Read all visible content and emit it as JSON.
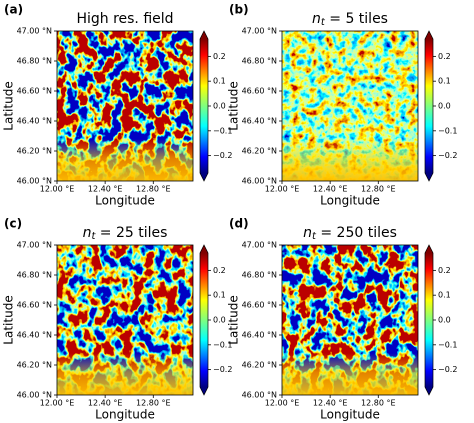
{
  "chart_data": [
    {
      "type": "heatmap",
      "panel_label": "(a)",
      "title": "High res. field",
      "xlabel": "Longitude",
      "ylabel": "Latitude",
      "contrast": 3.2,
      "xlim": [
        12.0,
        13.13
      ],
      "xticks": [
        {
          "value": 12.0,
          "label": "12.00 °E"
        },
        {
          "value": 12.4,
          "label": "12.40 °E"
        },
        {
          "value": 12.8,
          "label": "12.80 °E"
        }
      ],
      "ylim": [
        46.0,
        47.0
      ],
      "yticks": [
        {
          "value": 46.0,
          "label": "46.00 °N"
        },
        {
          "value": 46.2,
          "label": "46.20 °N"
        },
        {
          "value": 46.4,
          "label": "46.40 °N"
        },
        {
          "value": 46.6,
          "label": "46.60 °N"
        },
        {
          "value": 46.8,
          "label": "46.80 °N"
        },
        {
          "value": 47.0,
          "label": "47.00 °N"
        }
      ],
      "colorbar": {
        "lim": [
          -0.27,
          0.27
        ],
        "ticks": [
          {
            "value": -0.2,
            "label": "−0.2"
          },
          {
            "value": -0.1,
            "label": "−0.1"
          },
          {
            "value": 0,
            "label": "0.0"
          },
          0.1,
          0.2
        ]
      }
    },
    {
      "type": "heatmap",
      "panel_label": "(b)",
      "title": [
        "n",
        "t",
        " = 5 tiles"
      ],
      "xlabel": "Longitude",
      "ylabel": "Latitude",
      "contrast": 1.0,
      "xlim": [
        12.0,
        13.13
      ],
      "xticks": [
        {
          "value": 12.0,
          "label": "12.00 °E"
        },
        {
          "value": 12.4,
          "label": "12.40 °E"
        },
        {
          "value": 12.8,
          "label": "12.80 °E"
        }
      ],
      "ylim": [
        46.0,
        47.0
      ],
      "yticks": [
        {
          "value": 46.0,
          "label": "46.00 °N"
        },
        {
          "value": 46.2,
          "label": "46.20 °N"
        },
        {
          "value": 46.4,
          "label": "46.40 °N"
        },
        {
          "value": 46.6,
          "label": "46.60 °N"
        },
        {
          "value": 46.8,
          "label": "46.80 °N"
        },
        {
          "value": 47.0,
          "label": "47.00 °N"
        }
      ],
      "colorbar": {
        "lim": [
          -0.27,
          0.27
        ],
        "ticks": [
          {
            "value": -0.2,
            "label": "−0.2"
          },
          {
            "value": -0.1,
            "label": "−0.1"
          },
          {
            "value": 0,
            "label": "0.0"
          },
          0.1,
          0.2
        ]
      }
    },
    {
      "type": "heatmap",
      "panel_label": "(c)",
      "title": [
        "n",
        "t",
        " = 25 tiles"
      ],
      "xlabel": "Longitude",
      "ylabel": "Latitude",
      "contrast": 2.6,
      "xlim": [
        12.0,
        13.13
      ],
      "xticks": [
        {
          "value": 12.0,
          "label": "12.00 °E"
        },
        {
          "value": 12.4,
          "label": "12.40 °E"
        },
        {
          "value": 12.8,
          "label": "12.80 °E"
        }
      ],
      "ylim": [
        46.0,
        47.0
      ],
      "yticks": [
        {
          "value": 46.0,
          "label": "46.00 °N"
        },
        {
          "value": 46.2,
          "label": "46.20 °N"
        },
        {
          "value": 46.4,
          "label": "46.40 °N"
        },
        {
          "value": 46.6,
          "label": "46.60 °N"
        },
        {
          "value": 46.8,
          "label": "46.80 °N"
        },
        {
          "value": 47.0,
          "label": "47.00 °N"
        }
      ],
      "colorbar": {
        "lim": [
          -0.27,
          0.27
        ],
        "ticks": [
          {
            "value": -0.2,
            "label": "−0.2"
          },
          {
            "value": -0.1,
            "label": "−0.1"
          },
          {
            "value": 0,
            "label": "0.0"
          },
          0.1,
          0.2
        ]
      }
    },
    {
      "type": "heatmap",
      "panel_label": "(d)",
      "title": [
        "n",
        "t",
        " = 250 tiles"
      ],
      "xlabel": "Longitude",
      "ylabel": "Latitude",
      "contrast": 3.0,
      "xlim": [
        12.0,
        13.13
      ],
      "xticks": [
        {
          "value": 12.0,
          "label": "12.00 °E"
        },
        {
          "value": 12.4,
          "label": "12.40 °E"
        },
        {
          "value": 12.8,
          "label": "12.80 °E"
        }
      ],
      "ylim": [
        46.0,
        47.0
      ],
      "yticks": [
        {
          "value": 46.0,
          "label": "46.00 °N"
        },
        {
          "value": 46.2,
          "label": "46.20 °N"
        },
        {
          "value": 46.4,
          "label": "46.40 °N"
        },
        {
          "value": 46.6,
          "label": "46.60 °N"
        },
        {
          "value": 46.8,
          "label": "46.80 °N"
        },
        {
          "value": 47.0,
          "label": "47.00 °N"
        }
      ],
      "colorbar": {
        "lim": [
          -0.27,
          0.27
        ],
        "ticks": [
          {
            "value": -0.2,
            "label": "−0.2"
          },
          {
            "value": -0.1,
            "label": "−0.1"
          },
          {
            "value": 0,
            "label": "0.0"
          },
          0.1,
          0.2
        ]
      }
    }
  ]
}
